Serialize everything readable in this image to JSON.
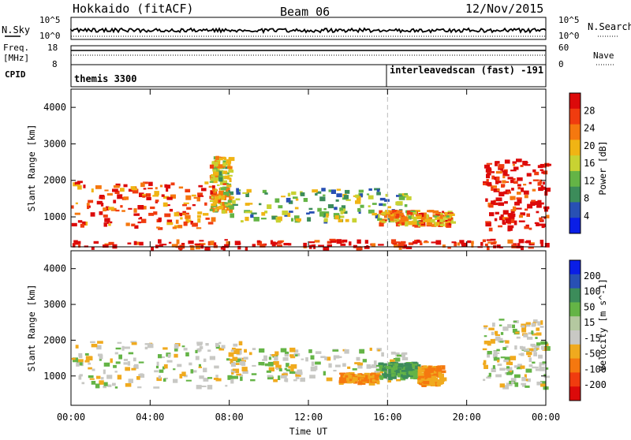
{
  "header": {
    "title": "Hokkaido (fitACF)",
    "beam": "Beam 06",
    "date": "12/Nov/2015"
  },
  "status_panels": {
    "nsky_label": "N.Sky",
    "nsearch_label": "N.Search",
    "nsky_ticks": [
      "10^5",
      "10^0"
    ],
    "nsearch_ticks": [
      "10^5",
      "10^0"
    ],
    "freq_label_line1": "Freq.",
    "freq_label_line2": "[MHz]",
    "freq_ticks": [
      "18",
      "8"
    ],
    "nave_label": "Nave",
    "nave_ticks": [
      "60",
      "0"
    ],
    "cpid_label": "CPID",
    "cpid_mode_1": "themis 3300",
    "cpid_mode_2": "interleavedscan (fast) -191"
  },
  "x_axis": {
    "label": "Time UT",
    "ticks": [
      "00:00",
      "04:00",
      "08:00",
      "12:00",
      "16:00",
      "20:00",
      "00:00"
    ]
  },
  "colors": {
    "power_scale": [
      "#0a1ee6",
      "#2850b4",
      "#3c8c5a",
      "#64b446",
      "#c8d232",
      "#f0b414",
      "#f5780f",
      "#f03c0f",
      "#dc0a0a"
    ],
    "velocity_scale": [
      "#dc0a0a",
      "#f03c0f",
      "#f5780f",
      "#f0aa1e",
      "#c8c8c4",
      "#b4c8a0",
      "#64b446",
      "#3c8c5a",
      "#2850b4",
      "#0a1ee6"
    ]
  },
  "chart_data": [
    {
      "type": "heatmap",
      "title": "Power",
      "ylabel": "Slant Range [km]",
      "xlabel": "Time UT",
      "yticks": [
        1000,
        2000,
        3000,
        4000
      ],
      "ylim": [
        180,
        4500
      ],
      "xlim": [
        0,
        24
      ],
      "colorbar_label": "Power [dB]",
      "colorbar_ticks": [
        4,
        8,
        12,
        16,
        20,
        24,
        28
      ],
      "regions": [
        {
          "t": [
            0,
            7.2
          ],
          "r": [
            700,
            2000
          ],
          "value": 24
        },
        {
          "t": [
            7.0,
            8.0
          ],
          "r": [
            1200,
            2700
          ],
          "value": 16
        },
        {
          "t": [
            8.0,
            17.0
          ],
          "r": [
            900,
            1800
          ],
          "value": 12
        },
        {
          "t": [
            15.5,
            19.2
          ],
          "r": [
            800,
            1200
          ],
          "value": 20
        },
        {
          "t": [
            20.8,
            24
          ],
          "r": [
            700,
            2600
          ],
          "value": 28
        },
        {
          "t": [
            0,
            24
          ],
          "r": [
            180,
            400
          ],
          "value": 28
        }
      ]
    },
    {
      "type": "heatmap",
      "title": "Velocity",
      "ylabel": "Slant Range [km]",
      "xlabel": "Time UT",
      "yticks": [
        1000,
        2000,
        3000,
        4000
      ],
      "ylim": [
        180,
        4500
      ],
      "xlim": [
        0,
        24
      ],
      "colorbar_label": "Velocity [m s^-1]",
      "colorbar_ticks": [
        200,
        100,
        50,
        15,
        -15,
        -50,
        -100,
        -200
      ],
      "regions": [
        {
          "t": [
            0,
            8.5
          ],
          "r": [
            700,
            2000
          ],
          "value": 0
        },
        {
          "t": [
            8.0,
            17.0
          ],
          "r": [
            900,
            1800
          ],
          "value": 0
        },
        {
          "t": [
            13.5,
            15.5
          ],
          "r": [
            850,
            1100
          ],
          "value": -50
        },
        {
          "t": [
            15.5,
            17.5
          ],
          "r": [
            1000,
            1400
          ],
          "value": 50
        },
        {
          "t": [
            17.5,
            18.7
          ],
          "r": [
            800,
            1300
          ],
          "value": -50
        },
        {
          "t": [
            20.8,
            24
          ],
          "r": [
            700,
            2600
          ],
          "value": 0
        }
      ]
    }
  ]
}
